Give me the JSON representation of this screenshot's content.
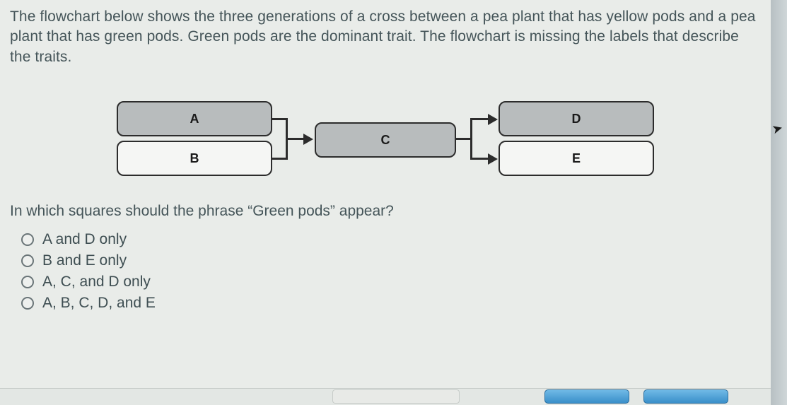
{
  "question": {
    "paragraph": "The flowchart below shows the three generations of a cross between a pea plant that has yellow pods and a pea plant that has green pods. Green pods are the dominant trait. The flowchart is missing the labels that describe the traits.",
    "prompt": "In which squares should the phrase “Green pods” appear?"
  },
  "flowchart": {
    "type": "flowchart",
    "nodes": {
      "A": {
        "label": "A",
        "fill": "#b8bcbd",
        "border": "#2c2c2c"
      },
      "B": {
        "label": "B",
        "fill": "#f5f6f4",
        "border": "#2c2c2c"
      },
      "C": {
        "label": "C",
        "fill": "#b8bcbd",
        "border": "#2c2c2c"
      },
      "D": {
        "label": "D",
        "fill": "#b8bcbd",
        "border": "#2c2c2c"
      },
      "E": {
        "label": "E",
        "fill": "#f5f6f4",
        "border": "#2c2c2c"
      }
    },
    "edges": [
      {
        "from": [
          "A",
          "B"
        ],
        "to": "C",
        "style": "merge-arrow"
      },
      {
        "from": "C",
        "to": [
          "D",
          "E"
        ],
        "style": "split-arrow"
      }
    ],
    "node_border_radius": 10,
    "node_border_width": 2.5,
    "node_font_weight": "bold",
    "node_font_size": 18,
    "connector_color": "#2c2c2c",
    "connector_width": 3,
    "arrowhead_size": 14
  },
  "options": [
    {
      "label": "A and D only"
    },
    {
      "label": "B and E only"
    },
    {
      "label": "A, C, and D only"
    },
    {
      "label": "A, B, C, D, and E"
    }
  ],
  "colors": {
    "page_bg": "#e9ece9",
    "outer_bg": "#c8cfd2",
    "text": "#455559",
    "button_blue_top": "#6fb9e6",
    "button_blue_bottom": "#3a8fc9"
  }
}
